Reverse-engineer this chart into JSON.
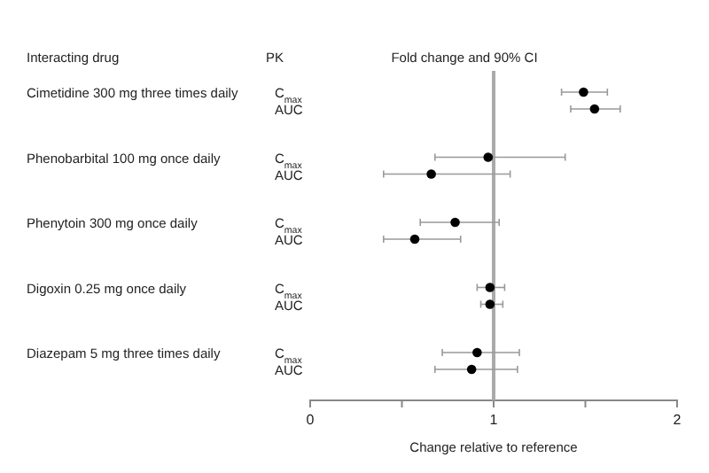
{
  "chart_data": {
    "type": "scatter",
    "orientation": "horizontal",
    "title": "Fold change and 90% CI",
    "xlabel": "Change relative to reference",
    "categories": [
      "C$_{max}$",
      "AUC",
      "C$_{max}$",
      "AUC",
      "C$_{max}$",
      "AUC",
      "C$_{max}$",
      "AUC",
      "C$_{max}$",
      "AUC"
    ],
    "values": [
      1.49,
      1.55,
      0.97,
      0.66,
      0.79,
      0.57,
      0.98,
      0.98,
      0.91,
      0.88
    ],
    "errors": [
      [
        1.37,
        1.62
      ],
      [
        1.42,
        1.69
      ],
      [
        0.68,
        1.39
      ],
      [
        0.4,
        1.09
      ],
      [
        0.6,
        1.03
      ],
      [
        0.4,
        0.82
      ],
      [
        0.91,
        1.06
      ],
      [
        0.93,
        1.05
      ],
      [
        0.72,
        1.14
      ],
      [
        0.68,
        1.13
      ]
    ],
    "color": "#000000",
    "marker": "circle",
    "xlim": [
      0,
      2
    ],
    "xticks": [
      0,
      {
        "value": 0.5,
        "label": null
      },
      1,
      {
        "value": 1.5,
        "label": null
      },
      2
    ],
    "ref_lines": [
      {
        "axis": "x",
        "value": 1,
        "color": "#aaaaaa"
      }
    ],
    "annotations": [
      "Interacting drug",
      "PK",
      "Cimetidine 300 mg three times daily",
      "Phenobarbital 100 mg once daily",
      "Phenytoin 300 mg once daily",
      "Digoxin 0.25 mg once daily",
      "Diazepam 5 mg three times daily"
    ]
  }
}
